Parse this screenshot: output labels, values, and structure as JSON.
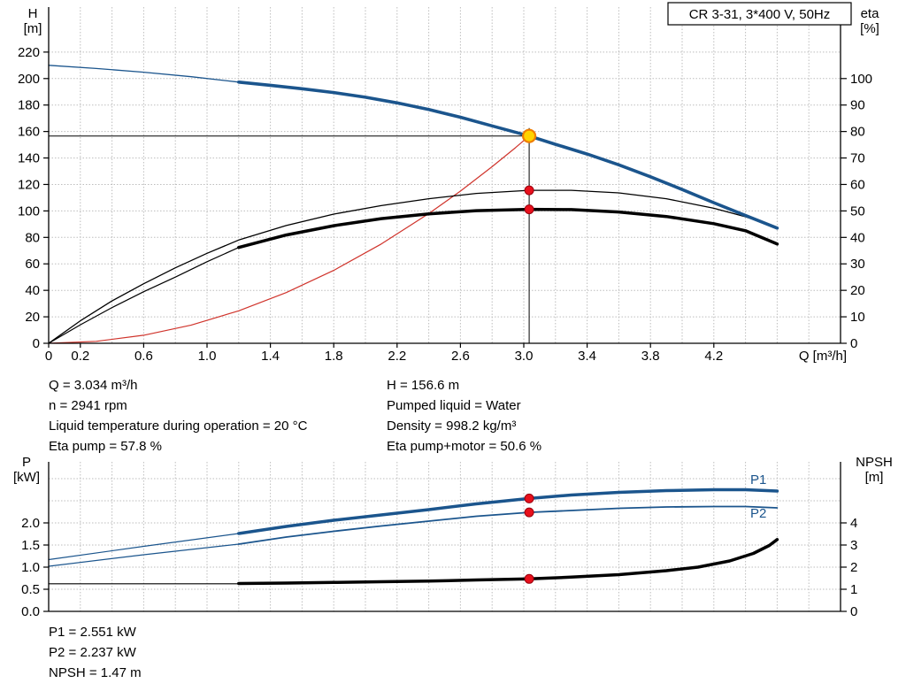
{
  "info": {
    "top_left": [
      "Q = 3.034 m³/h",
      "n = 2941 rpm",
      "Liquid temperature during operation = 20 °C",
      "Eta pump = 57.8 %"
    ],
    "top_right": [
      "H = 156.6 m",
      "Pumped liquid = Water",
      "Density = 998.2 kg/m³",
      "Eta pump+motor = 50.6 %"
    ],
    "bottom": [
      "P1 = 2.551 kW",
      "P2 = 2.237 kW",
      "NPSH = 1.47 m"
    ]
  },
  "colors": {
    "blue": "#1b558d",
    "black": "#000000",
    "red": "#d0342c",
    "grid": "#bdbdbd",
    "dot": "#e8101c",
    "dot_edge": "#99000d",
    "op_fill": "#ffd300",
    "op_stroke": "#ef7d00"
  },
  "chart_data": [
    {
      "name": "hq-eta-chart",
      "type": "line",
      "title_box": {
        "text": "CR 3-31, 3*400 V, 50Hz"
      },
      "x": {
        "title": "Q [m³/h]",
        "min": 0,
        "max": 5.0,
        "grid_step": 0.2,
        "ticks": [
          {
            "v": 0,
            "t": "0"
          },
          {
            "v": 0.2,
            "t": "0.2"
          },
          {
            "v": 0.6,
            "t": "0.6"
          },
          {
            "v": 1.0,
            "t": "1.0"
          },
          {
            "v": 1.4,
            "t": "1.4"
          },
          {
            "v": 1.8,
            "t": "1.8"
          },
          {
            "v": 2.2,
            "t": "2.2"
          },
          {
            "v": 2.6,
            "t": "2.6"
          },
          {
            "v": 3.0,
            "t": "3.0"
          },
          {
            "v": 3.4,
            "t": "3.4"
          },
          {
            "v": 3.8,
            "t": "3.8"
          },
          {
            "v": 4.2,
            "t": "4.2"
          }
        ]
      },
      "y_left": {
        "title_lines": [
          "H",
          "[m]"
        ],
        "min": 0,
        "max": 254,
        "grid_step": 20,
        "grid_max": 220,
        "ticks": [
          {
            "v": 0,
            "t": "0"
          },
          {
            "v": 20,
            "t": "20"
          },
          {
            "v": 40,
            "t": "40"
          },
          {
            "v": 60,
            "t": "60"
          },
          {
            "v": 80,
            "t": "80"
          },
          {
            "v": 100,
            "t": "100"
          },
          {
            "v": 120,
            "t": "120"
          },
          {
            "v": 140,
            "t": "140"
          },
          {
            "v": 160,
            "t": "160"
          },
          {
            "v": 180,
            "t": "180"
          },
          {
            "v": 200,
            "t": "200"
          },
          {
            "v": 220,
            "t": "220"
          }
        ]
      },
      "y_right": {
        "title_lines": [
          "eta",
          "[%]"
        ],
        "min": 0,
        "max": 127,
        "ticks": [
          {
            "v": 0,
            "t": "0"
          },
          {
            "v": 10,
            "t": "10"
          },
          {
            "v": 20,
            "t": "20"
          },
          {
            "v": 30,
            "t": "30"
          },
          {
            "v": 40,
            "t": "40"
          },
          {
            "v": 50,
            "t": "50"
          },
          {
            "v": 60,
            "t": "60"
          },
          {
            "v": 70,
            "t": "70"
          },
          {
            "v": 80,
            "t": "80"
          },
          {
            "v": 90,
            "t": "90"
          },
          {
            "v": 100,
            "t": "100"
          }
        ]
      },
      "crosshair": {
        "x": 3.034,
        "y": 156.6
      },
      "series": [
        {
          "name": "system-curve",
          "axis": "yl",
          "color": "red",
          "w": 1.2,
          "pts": [
            [
              0,
              0
            ],
            [
              0.3,
              1.5
            ],
            [
              0.6,
              6.1
            ],
            [
              0.9,
              13.8
            ],
            [
              1.2,
              24.5
            ],
            [
              1.5,
              38.3
            ],
            [
              1.8,
              55.1
            ],
            [
              2.1,
              75.0
            ],
            [
              2.4,
              98.0
            ],
            [
              2.6,
              115.0
            ],
            [
              2.8,
              133.4
            ],
            [
              2.95,
              148.0
            ],
            [
              3.034,
              156.6
            ]
          ]
        },
        {
          "name": "eta-pump-curve",
          "axis": "yr",
          "color": "black",
          "w": 1.3,
          "pts": [
            [
              0,
              0
            ],
            [
              0.2,
              8.5
            ],
            [
              0.4,
              16
            ],
            [
              0.6,
              22.5
            ],
            [
              0.8,
              28.5
            ],
            [
              1.0,
              34
            ],
            [
              1.2,
              39
            ],
            [
              1.5,
              44.5
            ],
            [
              1.8,
              48.8
            ],
            [
              2.1,
              52
            ],
            [
              2.4,
              54.6
            ],
            [
              2.7,
              56.6
            ],
            [
              3.034,
              57.8
            ],
            [
              3.3,
              57.8
            ],
            [
              3.6,
              56.8
            ],
            [
              3.9,
              54.6
            ],
            [
              4.2,
              51
            ],
            [
              4.4,
              47.8
            ],
            [
              4.6,
              43.8
            ]
          ]
        },
        {
          "name": "eta-pump-motor-extension",
          "axis": "yr",
          "color": "black",
          "w": 1.2,
          "pts": [
            [
              0,
              0
            ],
            [
              0.2,
              7
            ],
            [
              0.4,
              13.5
            ],
            [
              0.6,
              19.5
            ],
            [
              0.8,
              25
            ],
            [
              1.0,
              30.8
            ],
            [
              1.2,
              36.2
            ]
          ]
        },
        {
          "name": "eta-pump-motor-curve",
          "axis": "yr",
          "color": "black",
          "w": 3.5,
          "pts": [
            [
              1.2,
              36.2
            ],
            [
              1.5,
              40.9
            ],
            [
              1.8,
              44.4
            ],
            [
              2.1,
              47.1
            ],
            [
              2.4,
              48.9
            ],
            [
              2.7,
              50.1
            ],
            [
              3.034,
              50.6
            ],
            [
              3.3,
              50.5
            ],
            [
              3.6,
              49.6
            ],
            [
              3.9,
              47.9
            ],
            [
              4.2,
              45.2
            ],
            [
              4.4,
              42.5
            ],
            [
              4.6,
              37.5
            ]
          ]
        },
        {
          "name": "head-extension",
          "axis": "yl",
          "color": "blue",
          "w": 1.3,
          "pts": [
            [
              0,
              210
            ],
            [
              0.3,
              207.6
            ],
            [
              0.6,
              204.8
            ],
            [
              0.9,
              201.4
            ],
            [
              1.2,
              197.3
            ]
          ]
        },
        {
          "name": "head-curve",
          "axis": "yl",
          "color": "blue",
          "w": 3.6,
          "pts": [
            [
              1.2,
              197.3
            ],
            [
              1.4,
              194.9
            ],
            [
              1.6,
              192.3
            ],
            [
              1.8,
              189.4
            ],
            [
              2.0,
              185.9
            ],
            [
              2.2,
              181.6
            ],
            [
              2.4,
              176.6
            ],
            [
              2.6,
              170.8
            ],
            [
              2.8,
              164.2
            ],
            [
              3.034,
              156.6
            ],
            [
              3.2,
              150.3
            ],
            [
              3.4,
              143
            ],
            [
              3.6,
              134.8
            ],
            [
              3.8,
              125.8
            ],
            [
              4.0,
              116.2
            ],
            [
              4.2,
              106.2
            ],
            [
              4.4,
              96.5
            ],
            [
              4.6,
              87
            ]
          ]
        }
      ],
      "markers": [
        {
          "x": 3.034,
          "y": 156.6,
          "axis": "yl",
          "type": "op"
        },
        {
          "x": 3.034,
          "y": 57.8,
          "axis": "yr",
          "type": "dot"
        },
        {
          "x": 3.034,
          "y": 50.6,
          "axis": "yr",
          "type": "dot"
        }
      ],
      "labels": []
    },
    {
      "name": "power-npsh-chart",
      "type": "line",
      "x": {
        "min": 0,
        "max": 5.0,
        "grid_step": 0.2,
        "ticks": []
      },
      "y_left": {
        "title_lines": [
          "P",
          "[kW]"
        ],
        "min": 0,
        "max": 3.38,
        "grid_step": 0.5,
        "grid_max": 3.0,
        "ticks": [
          {
            "v": 0,
            "t": "0.0"
          },
          {
            "v": 0.5,
            "t": "0.5"
          },
          {
            "v": 1,
            "t": "1.0"
          },
          {
            "v": 1.5,
            "t": "1.5"
          },
          {
            "v": 2,
            "t": "2.0"
          }
        ]
      },
      "y_right": {
        "title_lines": [
          "NPSH",
          "[m]"
        ],
        "min": 0,
        "max": 6.76,
        "ticks": [
          {
            "v": 0,
            "t": "0"
          },
          {
            "v": 1,
            "t": "1"
          },
          {
            "v": 2,
            "t": "2"
          },
          {
            "v": 3,
            "t": "3"
          },
          {
            "v": 4,
            "t": "4"
          }
        ]
      },
      "series": [
        {
          "name": "p2-extension",
          "axis": "yl",
          "color": "blue",
          "w": 1.2,
          "pts": [
            [
              0,
              1.02
            ],
            [
              0.6,
              1.28
            ],
            [
              1.2,
              1.52
            ]
          ]
        },
        {
          "name": "p2-curve",
          "axis": "yl",
          "color": "blue",
          "w": 1.8,
          "pts": [
            [
              1.2,
              1.52
            ],
            [
              1.5,
              1.68
            ],
            [
              1.8,
              1.81
            ],
            [
              2.1,
              1.93
            ],
            [
              2.4,
              2.04
            ],
            [
              2.7,
              2.15
            ],
            [
              3.034,
              2.237
            ],
            [
              3.3,
              2.28
            ],
            [
              3.6,
              2.33
            ],
            [
              3.9,
              2.36
            ],
            [
              4.2,
              2.37
            ],
            [
              4.4,
              2.37
            ],
            [
              4.6,
              2.34
            ]
          ]
        },
        {
          "name": "p1-extension",
          "axis": "yl",
          "color": "blue",
          "w": 1.2,
          "pts": [
            [
              0,
              1.17
            ],
            [
              0.6,
              1.47
            ],
            [
              1.2,
              1.76
            ]
          ]
        },
        {
          "name": "p1-curve",
          "axis": "yl",
          "color": "blue",
          "w": 3.5,
          "pts": [
            [
              1.2,
              1.76
            ],
            [
              1.5,
              1.92
            ],
            [
              1.8,
              2.06
            ],
            [
              2.1,
              2.18
            ],
            [
              2.4,
              2.3
            ],
            [
              2.7,
              2.43
            ],
            [
              3.034,
              2.551
            ],
            [
              3.3,
              2.63
            ],
            [
              3.6,
              2.69
            ],
            [
              3.9,
              2.73
            ],
            [
              4.2,
              2.75
            ],
            [
              4.4,
              2.75
            ],
            [
              4.6,
              2.72
            ]
          ]
        },
        {
          "name": "npsh-extension",
          "axis": "yr",
          "color": "black",
          "w": 1.2,
          "pts": [
            [
              0,
              1.25
            ],
            [
              1.2,
              1.25
            ]
          ]
        },
        {
          "name": "npsh-curve",
          "axis": "yr",
          "color": "black",
          "w": 3.5,
          "pts": [
            [
              1.2,
              1.26
            ],
            [
              1.5,
              1.28
            ],
            [
              1.8,
              1.31
            ],
            [
              2.1,
              1.34
            ],
            [
              2.4,
              1.37
            ],
            [
              2.7,
              1.42
            ],
            [
              3.034,
              1.47
            ],
            [
              3.3,
              1.55
            ],
            [
              3.6,
              1.66
            ],
            [
              3.9,
              1.84
            ],
            [
              4.1,
              2.0
            ],
            [
              4.3,
              2.28
            ],
            [
              4.45,
              2.62
            ],
            [
              4.55,
              2.98
            ],
            [
              4.6,
              3.25
            ]
          ]
        }
      ],
      "markers": [
        {
          "x": 3.034,
          "y": 2.551,
          "axis": "yl",
          "type": "dot"
        },
        {
          "x": 3.034,
          "y": 2.237,
          "axis": "yl",
          "type": "dot"
        },
        {
          "x": 3.034,
          "y": 1.47,
          "axis": "yr",
          "type": "dot"
        }
      ],
      "labels": [
        {
          "x": 4.43,
          "y": 2.88,
          "axis": "yl",
          "t": "P1"
        },
        {
          "x": 4.43,
          "y": 2.12,
          "axis": "yl",
          "t": "P2"
        }
      ]
    }
  ]
}
